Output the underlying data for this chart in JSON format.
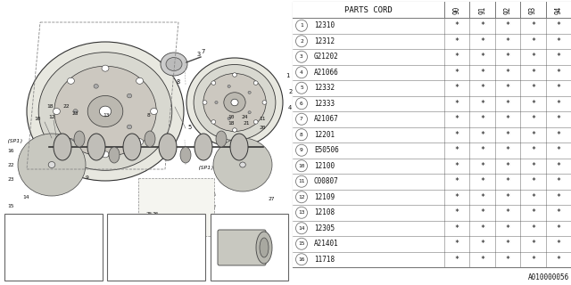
{
  "bg_color": "#ffffff",
  "table_header": "PARTS CORD",
  "col_headers": [
    "9\n0",
    "9\n1",
    "9\n2",
    "9\n3",
    "9\n4"
  ],
  "rows": [
    {
      "num": 1,
      "part": "12310",
      "vals": [
        "*",
        "*",
        "*",
        "*",
        "*"
      ]
    },
    {
      "num": 2,
      "part": "12312",
      "vals": [
        "*",
        "*",
        "*",
        "*",
        "*"
      ]
    },
    {
      "num": 3,
      "part": "G21202",
      "vals": [
        "*",
        "*",
        "*",
        "*",
        "*"
      ]
    },
    {
      "num": 4,
      "part": "A21066",
      "vals": [
        "*",
        "*",
        "*",
        "*",
        "*"
      ]
    },
    {
      "num": 5,
      "part": "12332",
      "vals": [
        "*",
        "*",
        "*",
        "*",
        "*"
      ]
    },
    {
      "num": 6,
      "part": "12333",
      "vals": [
        "*",
        "*",
        "*",
        "*",
        "*"
      ]
    },
    {
      "num": 7,
      "part": "A21067",
      "vals": [
        "*",
        "*",
        "*",
        "*",
        "*"
      ]
    },
    {
      "num": 8,
      "part": "12201",
      "vals": [
        "*",
        "*",
        "*",
        "*",
        "*"
      ]
    },
    {
      "num": 9,
      "part": "E50506",
      "vals": [
        "*",
        "*",
        "*",
        "*",
        "*"
      ]
    },
    {
      "num": 10,
      "part": "12100",
      "vals": [
        "*",
        "*",
        "*",
        "*",
        "*"
      ]
    },
    {
      "num": 11,
      "part": "C00807",
      "vals": [
        "*",
        "*",
        "*",
        "*",
        "*"
      ]
    },
    {
      "num": 12,
      "part": "12109",
      "vals": [
        "*",
        "*",
        "*",
        "*",
        "*"
      ]
    },
    {
      "num": 13,
      "part": "12108",
      "vals": [
        "*",
        "*",
        "*",
        "*",
        "*"
      ]
    },
    {
      "num": 14,
      "part": "12305",
      "vals": [
        "*",
        "*",
        "*",
        "*",
        "*"
      ]
    },
    {
      "num": 15,
      "part": "A21401",
      "vals": [
        "*",
        "*",
        "*",
        "*",
        "*"
      ]
    },
    {
      "num": 16,
      "part": "11718",
      "vals": [
        "*",
        "*",
        "*",
        "*",
        "*"
      ]
    }
  ],
  "footer_code": "A010000056",
  "line_color": "#777777",
  "text_color": "#111111",
  "draw_color": "#555555"
}
